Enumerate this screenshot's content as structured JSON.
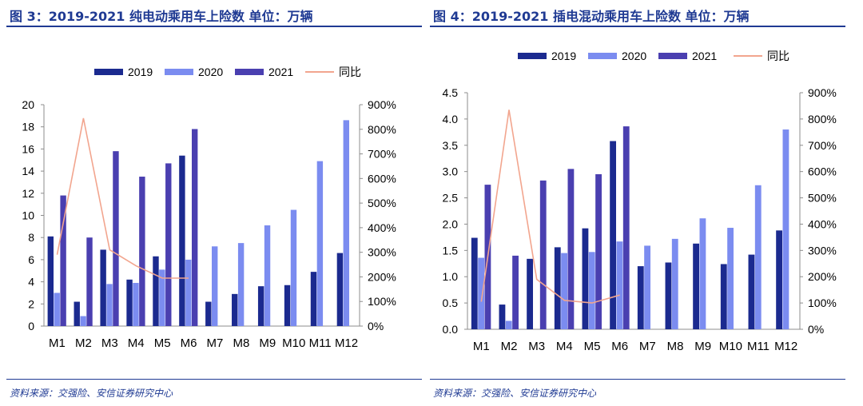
{
  "colors": {
    "title": "#1f3a93",
    "s2019": "#1b2a8f",
    "s2020": "#7b8cf0",
    "s2021": "#4a3fb0",
    "yoy": "#f2a58e",
    "axis": "#8c8c8c"
  },
  "panels": [
    {
      "title": "图 3：2019-2021 纯电动乘用车上险数 单位：万辆",
      "source": "资料来源：交强险、安信证券研究中心"
    },
    {
      "title": "图 4：2019-2021 插电混动乘用车上险数 单位：万辆",
      "source": "资料来源：交强险、安信证券研究中心"
    }
  ],
  "chart_data": [
    {
      "type": "bar",
      "categories": [
        "M1",
        "M2",
        "M3",
        "M4",
        "M5",
        "M6",
        "M7",
        "M8",
        "M9",
        "M10",
        "M11",
        "M12"
      ],
      "series": [
        {
          "name": "2019",
          "values": [
            8.1,
            2.2,
            6.9,
            4.2,
            6.3,
            15.4,
            2.2,
            2.9,
            3.6,
            3.7,
            4.9,
            6.6
          ]
        },
        {
          "name": "2020",
          "values": [
            3.0,
            0.9,
            3.8,
            3.9,
            5.1,
            6.0,
            7.2,
            7.5,
            9.1,
            10.5,
            14.9,
            18.6
          ]
        },
        {
          "name": "2021",
          "values": [
            11.8,
            8.0,
            15.8,
            13.5,
            14.7,
            17.8,
            null,
            null,
            null,
            null,
            null,
            null
          ]
        },
        {
          "name": "同比",
          "type": "line",
          "axis": "right",
          "values": [
            290,
            845,
            310,
            245,
            195,
            195,
            null,
            null,
            null,
            null,
            null,
            null
          ]
        }
      ],
      "ylim": [
        0,
        20
      ],
      "yticks": [
        "0",
        "2",
        "4",
        "6",
        "8",
        "10",
        "12",
        "14",
        "16",
        "18",
        "20"
      ],
      "y2lim": [
        0,
        900
      ],
      "y2ticks": [
        "0%",
        "100%",
        "200%",
        "300%",
        "400%",
        "500%",
        "600%",
        "700%",
        "800%",
        "900%"
      ],
      "legend_position": "top",
      "grid": false
    },
    {
      "type": "bar",
      "categories": [
        "M1",
        "M2",
        "M3",
        "M4",
        "M5",
        "M6",
        "M7",
        "M8",
        "M9",
        "M10",
        "M11",
        "M12"
      ],
      "series": [
        {
          "name": "2019",
          "values": [
            1.74,
            0.47,
            1.34,
            1.56,
            1.92,
            3.58,
            1.2,
            1.27,
            1.63,
            1.24,
            1.42,
            1.88
          ]
        },
        {
          "name": "2020",
          "values": [
            1.36,
            0.16,
            null,
            1.45,
            1.47,
            1.67,
            1.59,
            1.72,
            2.11,
            1.93,
            2.74,
            3.8
          ]
        },
        {
          "name": "2021",
          "values": [
            2.75,
            1.4,
            2.83,
            3.05,
            2.95,
            3.86,
            null,
            null,
            null,
            null,
            null,
            null
          ]
        },
        {
          "name": "同比",
          "type": "line",
          "axis": "right",
          "values": [
            105,
            835,
            190,
            110,
            100,
            130,
            null,
            null,
            null,
            null,
            null,
            null
          ]
        }
      ],
      "ylim": [
        0,
        4.5
      ],
      "yticks": [
        "0.0",
        "0.5",
        "1.0",
        "1.5",
        "2.0",
        "2.5",
        "3.0",
        "3.5",
        "4.0",
        "4.5"
      ],
      "y2lim": [
        0,
        900
      ],
      "y2ticks": [
        "0%",
        "100%",
        "200%",
        "300%",
        "400%",
        "500%",
        "600%",
        "700%",
        "800%",
        "900%"
      ],
      "legend_position": "top",
      "grid": false
    }
  ]
}
